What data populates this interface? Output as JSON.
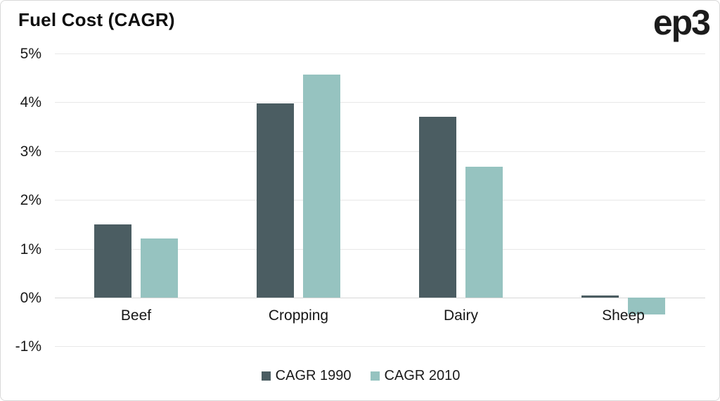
{
  "header": {
    "title": "Fuel Cost (CAGR)",
    "logo_text": "ep3"
  },
  "colors": {
    "series_1990": "#4b5d62",
    "series_2010": "#96c3c0",
    "gridline": "#e8e8e8",
    "zero_line": "#d7d7d7",
    "border": "#d9d9d9",
    "text": "#1a1a1a"
  },
  "chart_data": {
    "type": "bar",
    "title": "Fuel Cost (CAGR)",
    "categories": [
      "Beef",
      "Cropping",
      "Dairy",
      "Sheep"
    ],
    "series": [
      {
        "name": "CAGR 1990",
        "color": "#4b5d62",
        "values": [
          1.5,
          3.98,
          3.71,
          0.04
        ]
      },
      {
        "name": "CAGR 2010",
        "color": "#96c3c0",
        "values": [
          1.21,
          4.57,
          2.68,
          -0.34
        ]
      }
    ],
    "xlabel": "",
    "ylabel": "",
    "ylim": [
      -1,
      5
    ],
    "ytick_step": 1,
    "ytick_labels": [
      "5%",
      "4%",
      "3%",
      "2%",
      "1%",
      "0%",
      "-1%"
    ],
    "grid": true,
    "legend_position": "bottom"
  }
}
